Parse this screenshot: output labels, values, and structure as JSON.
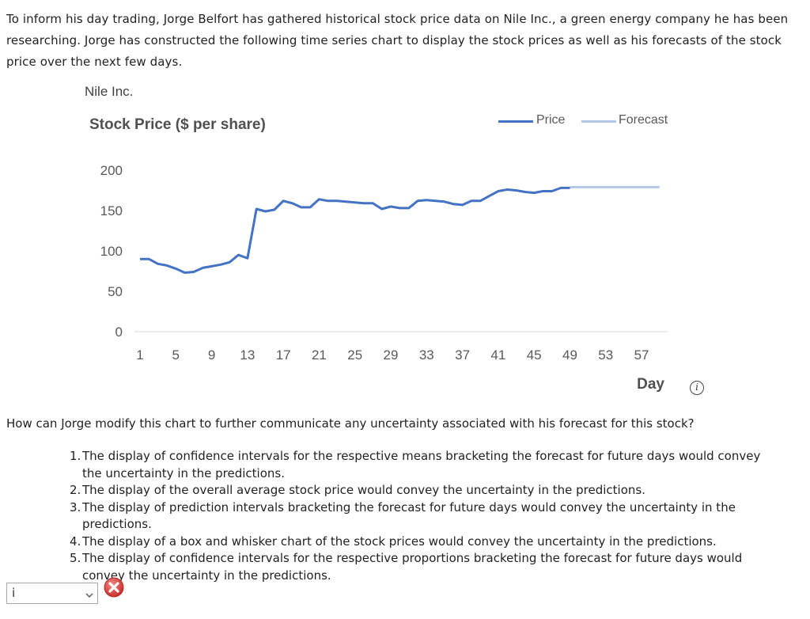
{
  "intro_text": "To inform his day trading, Jorge Belfort has gathered historical stock price data on Nile Inc., a green energy company he has been researching. Jorge has constructed the following time series chart to display the stock prices as well as his forecasts of the stock price over the next few days.",
  "chart_data": {
    "type": "line",
    "title": "Nile Inc.",
    "ylabel": "Stock Price ($ per share)",
    "xlabel": "Day",
    "ylim": [
      0,
      200
    ],
    "yticks": [
      "0",
      "50",
      "100",
      "150",
      "200"
    ],
    "xticks": [
      "1",
      "5",
      "9",
      "13",
      "17",
      "21",
      "25",
      "29",
      "33",
      "37",
      "41",
      "45",
      "49",
      "53",
      "57"
    ],
    "grid": false,
    "legend_position": "top-right",
    "series": [
      {
        "name": "Price",
        "color": "#4472C4",
        "x": [
          1,
          2,
          3,
          4,
          5,
          6,
          7,
          8,
          9,
          10,
          11,
          12,
          13,
          14,
          15,
          16,
          17,
          18,
          19,
          20,
          21,
          22,
          23,
          24,
          25,
          26,
          27,
          28,
          29,
          30,
          31,
          32,
          33,
          34,
          35,
          36,
          37,
          38,
          39,
          40,
          41,
          42,
          43,
          44,
          45,
          46,
          47,
          48,
          49
        ],
        "values": [
          90,
          90,
          84,
          82,
          78,
          73,
          74,
          79,
          81,
          83,
          86,
          95,
          91,
          152,
          149,
          151,
          162,
          159,
          154,
          154,
          164,
          162,
          162,
          161,
          160,
          159,
          159,
          152,
          155,
          153,
          153,
          162,
          163,
          162,
          161,
          158,
          157,
          162,
          162,
          168,
          174,
          176,
          175,
          173,
          172,
          174,
          174,
          178,
          178
        ]
      },
      {
        "name": "Forecast",
        "color": "#B4C7E7",
        "x": [
          49,
          50,
          51,
          52,
          53,
          54,
          55,
          56,
          57,
          58,
          59
        ],
        "values": [
          179,
          179,
          179,
          179,
          179,
          179,
          179,
          179,
          179,
          179,
          179
        ]
      }
    ]
  },
  "info_icon_glyph": "i",
  "question_text": "How can Jorge modify this chart to further communicate any uncertainty associated with his forecast for this stock?",
  "options": [
    {
      "num": "1.",
      "text": "The display of confidence intervals for the respective means bracketing the forecast for future days would convey the uncertainty in the predictions."
    },
    {
      "num": "2.",
      "text": "The display of the overall average stock price would convey the uncertainty in the predictions."
    },
    {
      "num": "3.",
      "text": "The display of prediction intervals bracketing the forecast for future days would convey the uncertainty in the predictions."
    },
    {
      "num": "4.",
      "text": "The display of a box and whisker chart of the stock prices would convey the uncertainty in the predictions."
    },
    {
      "num": "5.",
      "text": "The display of confidence intervals for the respective proportions bracketing the forecast for future days would convey the uncertainty in the predictions."
    }
  ],
  "answer_select": {
    "value": "i"
  },
  "icons": {
    "info": "info-circle-icon",
    "dropdown": "chevron-down-icon",
    "result": "wrong-x-icon"
  },
  "colors": {
    "wrong": "#D9534F"
  }
}
